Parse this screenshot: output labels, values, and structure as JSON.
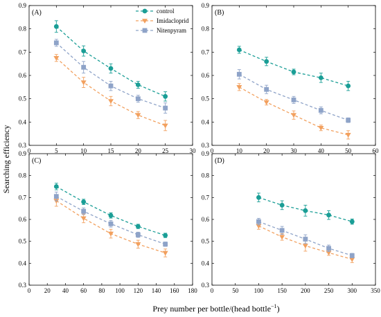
{
  "figure": {
    "xlabel": "Prey number per bottle/(head bottle",
    "xlabel_sup": "−1",
    "xlabel_close": ")",
    "ylabel": "Searching efficiency"
  },
  "legend": [
    {
      "name": "control",
      "color": "#1a9e96",
      "marker": "circle"
    },
    {
      "name": "Imidacloprid",
      "color": "#f2a05e",
      "marker": "triangle-down"
    },
    {
      "name": "Nitenpyram",
      "color": "#8ea3c8",
      "marker": "square"
    }
  ],
  "chart_data": [
    {
      "panel": "(A)",
      "type": "scatter",
      "xlim": [
        0,
        30
      ],
      "xticks": [
        0,
        5,
        10,
        15,
        20,
        25,
        30
      ],
      "ylim": [
        0.3,
        0.9
      ],
      "yticks": [
        0.3,
        0.4,
        0.5,
        0.6,
        0.7,
        0.8,
        0.9
      ],
      "fit_lines": "dashed",
      "series": [
        {
          "name": "control",
          "x": [
            5,
            10,
            15,
            20,
            25
          ],
          "y": [
            0.81,
            0.705,
            0.63,
            0.56,
            0.51
          ],
          "err": [
            0.025,
            0.022,
            0.02,
            0.015,
            0.02
          ]
        },
        {
          "name": "Imidacloprid",
          "x": [
            5,
            10,
            15,
            20,
            25
          ],
          "y": [
            0.675,
            0.57,
            0.49,
            0.43,
            0.385
          ],
          "err": [
            0.015,
            0.022,
            0.02,
            0.015,
            0.022
          ]
        },
        {
          "name": "Nitenpyram",
          "x": [
            5,
            10,
            15,
            20,
            25
          ],
          "y": [
            0.74,
            0.635,
            0.555,
            0.5,
            0.46
          ],
          "err": [
            0.015,
            0.025,
            0.02,
            0.015,
            0.022
          ]
        }
      ]
    },
    {
      "panel": "(B)",
      "type": "scatter",
      "xlim": [
        0,
        60
      ],
      "xticks": [
        0,
        10,
        20,
        30,
        40,
        50,
        60
      ],
      "ylim": [
        0.3,
        0.9
      ],
      "yticks": [
        0.3,
        0.4,
        0.5,
        0.6,
        0.7,
        0.8,
        0.9
      ],
      "fit_lines": "dashed",
      "series": [
        {
          "name": "control",
          "x": [
            10,
            20,
            30,
            40,
            50
          ],
          "y": [
            0.71,
            0.66,
            0.615,
            0.59,
            0.555
          ],
          "err": [
            0.015,
            0.018,
            0.012,
            0.02,
            0.02
          ]
        },
        {
          "name": "Imidacloprid",
          "x": [
            10,
            20,
            30,
            40,
            50
          ],
          "y": [
            0.55,
            0.485,
            0.43,
            0.375,
            0.345
          ],
          "err": [
            0.015,
            0.012,
            0.018,
            0.012,
            0.018
          ]
        },
        {
          "name": "Nitenpyram",
          "x": [
            10,
            20,
            30,
            40,
            50
          ],
          "y": [
            0.605,
            0.54,
            0.495,
            0.45,
            0.408
          ],
          "err": [
            0.02,
            0.018,
            0.015,
            0.015,
            0.01
          ]
        }
      ]
    },
    {
      "panel": "(C)",
      "type": "scatter",
      "xlim": [
        0,
        180
      ],
      "xticks": [
        0,
        20,
        40,
        60,
        80,
        100,
        120,
        140,
        160,
        180
      ],
      "ylim": [
        0.3,
        0.9
      ],
      "yticks": [
        0.3,
        0.4,
        0.5,
        0.6,
        0.7,
        0.8,
        0.9
      ],
      "fit_lines": "dashed",
      "series": [
        {
          "name": "control",
          "x": [
            30,
            60,
            90,
            120,
            150
          ],
          "y": [
            0.75,
            0.68,
            0.618,
            0.568,
            0.527
          ],
          "err": [
            0.015,
            0.012,
            0.012,
            0.01,
            0.01
          ]
        },
        {
          "name": "Imidacloprid",
          "x": [
            30,
            60,
            90,
            120,
            150
          ],
          "y": [
            0.685,
            0.605,
            0.535,
            0.487,
            0.447
          ],
          "err": [
            0.025,
            0.02,
            0.02,
            0.018,
            0.018
          ]
        },
        {
          "name": "Nitenpyram",
          "x": [
            30,
            60,
            90,
            120,
            150
          ],
          "y": [
            0.705,
            0.637,
            0.58,
            0.53,
            0.487
          ],
          "err": [
            0.02,
            0.015,
            0.015,
            0.012,
            0.01
          ]
        }
      ]
    },
    {
      "panel": "(D)",
      "type": "scatter",
      "xlim": [
        0,
        350
      ],
      "xticks": [
        0,
        50,
        100,
        150,
        200,
        250,
        300,
        350
      ],
      "ylim": [
        0.3,
        0.9
      ],
      "yticks": [
        0.3,
        0.4,
        0.5,
        0.6,
        0.7,
        0.8,
        0.9
      ],
      "fit_lines": "dashed",
      "series": [
        {
          "name": "control",
          "x": [
            100,
            150,
            200,
            250,
            300
          ],
          "y": [
            0.7,
            0.665,
            0.64,
            0.62,
            0.59
          ],
          "err": [
            0.02,
            0.02,
            0.025,
            0.02,
            0.012
          ]
        },
        {
          "name": "Imidacloprid",
          "x": [
            100,
            150,
            200,
            250,
            300
          ],
          "y": [
            0.57,
            0.52,
            0.48,
            0.448,
            0.418
          ],
          "err": [
            0.015,
            0.015,
            0.025,
            0.012,
            0.015
          ]
        },
        {
          "name": "Nitenpyram",
          "x": [
            100,
            150,
            200,
            250,
            300
          ],
          "y": [
            0.59,
            0.55,
            0.51,
            0.468,
            0.435
          ],
          "err": [
            0.015,
            0.018,
            0.02,
            0.015,
            0.01
          ]
        }
      ]
    }
  ]
}
